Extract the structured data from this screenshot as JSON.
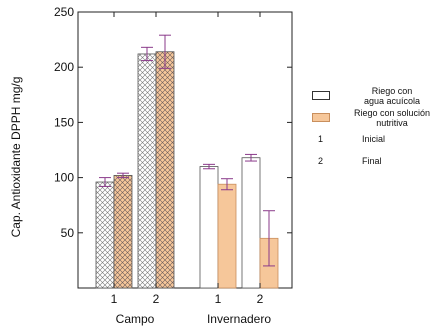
{
  "chart_data": {
    "type": "bar",
    "ylabel": "Cap. Antioxidante DPPH mg/g",
    "ylim": [
      0,
      250
    ],
    "yticks": [
      50,
      100,
      150,
      200,
      250
    ],
    "groups": [
      {
        "name": "Campo",
        "categories": [
          "1",
          "2"
        ]
      },
      {
        "name": "Invernadero",
        "categories": [
          "1",
          "2"
        ]
      }
    ],
    "series": [
      {
        "name": "Riego con agua acuícola",
        "fill": "#ffffff",
        "pattern": "crosshatch",
        "values": [
          96,
          212,
          110,
          118
        ],
        "errors": [
          4,
          6,
          2,
          3
        ]
      },
      {
        "name": "Riego con solución nutritiva",
        "fill": "#f6c79a",
        "pattern": "crosshatch",
        "values": [
          102,
          214,
          94,
          45
        ],
        "errors": [
          2,
          15,
          5,
          25
        ]
      }
    ],
    "legend": {
      "position": "right",
      "series_lines": [
        [
          "Riego con",
          "agua acuícola"
        ],
        [
          "Riego con solución",
          "nutritiva"
        ]
      ],
      "keys": [
        {
          "num": "1",
          "label": "Inicial"
        },
        {
          "num": "2",
          "label": "Final"
        }
      ]
    },
    "colors": {
      "axis": "#222222",
      "error": "#8a3a8a",
      "peach": "#f6c79a",
      "hatch": "#666666"
    }
  }
}
